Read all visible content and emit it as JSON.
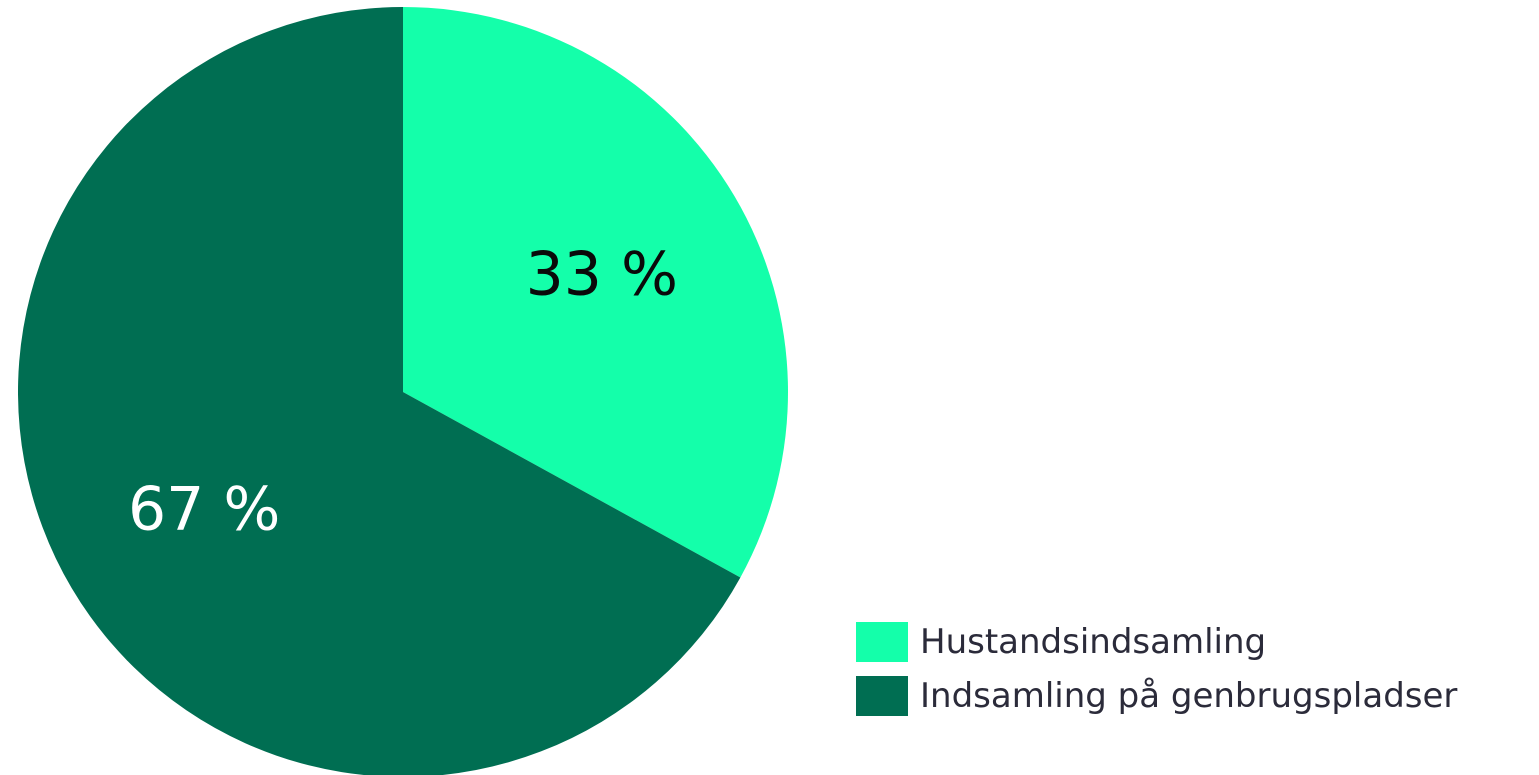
{
  "chart_data": {
    "type": "pie",
    "start_angle_deg": 0,
    "direction": "clockwise",
    "slices": [
      {
        "name": "Hustandsindsamling",
        "value": 33,
        "label": "33 %",
        "color": "#14ffaa",
        "label_color": "#0a0a0a"
      },
      {
        "name": "Indsamling på genbrugspladser",
        "value": 67,
        "label": "67 %",
        "color": "#006e52",
        "label_color": "#ffffff"
      }
    ],
    "legend": {
      "position": "bottom-right",
      "entries": [
        "Hustandsindsamling",
        "Indsamling på genbrugspladser"
      ]
    }
  }
}
